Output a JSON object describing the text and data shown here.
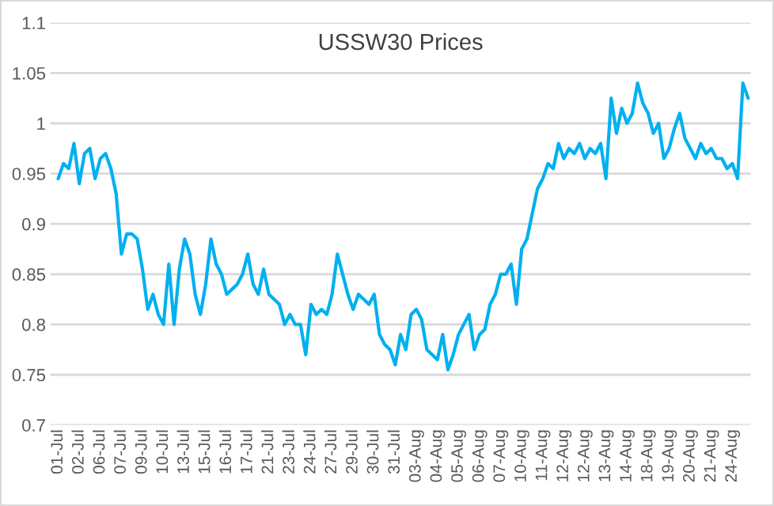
{
  "chart_data": {
    "type": "line",
    "title": "USSW30 Prices",
    "categories": [
      "01-Jul",
      null,
      null,
      null,
      "02-Jul",
      null,
      null,
      null,
      "06-Jul",
      null,
      null,
      null,
      "07-Jul",
      null,
      null,
      null,
      "09-Jul",
      null,
      null,
      null,
      "10-Jul",
      null,
      null,
      null,
      "13-Jul",
      null,
      null,
      null,
      "15-Jul",
      null,
      null,
      null,
      "16-Jul",
      null,
      null,
      null,
      "17-Jul",
      null,
      null,
      null,
      "21-Jul",
      null,
      null,
      null,
      "23-Jul",
      null,
      null,
      null,
      "24-Jul",
      null,
      null,
      null,
      "27-Jul",
      null,
      null,
      null,
      "29-Jul",
      null,
      null,
      null,
      "30-Jul",
      null,
      null,
      null,
      "31-Jul",
      null,
      null,
      null,
      "03-Aug",
      null,
      null,
      null,
      "04-Aug",
      null,
      null,
      null,
      "05-Aug",
      null,
      null,
      null,
      "06-Aug",
      null,
      null,
      null,
      "07-Aug",
      null,
      null,
      null,
      "10-Aug",
      null,
      null,
      null,
      "11-Aug",
      null,
      null,
      null,
      "12-Aug",
      null,
      null,
      null,
      "12-Aug",
      null,
      null,
      null,
      "13-Aug",
      null,
      null,
      null,
      "14-Aug",
      null,
      null,
      null,
      "18-Aug",
      null,
      null,
      null,
      "19-Aug",
      null,
      null,
      null,
      "20-Aug",
      null,
      null,
      null,
      "21-Aug",
      null,
      null,
      null,
      "24-Aug",
      null,
      null,
      null
    ],
    "series": [
      {
        "color": "#00b0f0",
        "values": [
          0.945,
          0.96,
          0.955,
          0.98,
          0.94,
          0.97,
          0.975,
          0.945,
          0.965,
          0.97,
          0.955,
          0.93,
          0.87,
          0.89,
          0.89,
          0.885,
          0.855,
          0.815,
          0.83,
          0.81,
          0.8,
          0.86,
          0.8,
          0.855,
          0.885,
          0.87,
          0.83,
          0.81,
          0.84,
          0.885,
          0.86,
          0.85,
          0.83,
          0.835,
          0.84,
          0.85,
          0.87,
          0.84,
          0.83,
          0.855,
          0.83,
          0.825,
          0.82,
          0.8,
          0.81,
          0.8,
          0.8,
          0.77,
          0.82,
          0.81,
          0.815,
          0.81,
          0.83,
          0.87,
          0.85,
          0.83,
          0.815,
          0.83,
          0.825,
          0.82,
          0.83,
          0.79,
          0.78,
          0.775,
          0.76,
          0.79,
          0.775,
          0.81,
          0.815,
          0.805,
          0.775,
          0.77,
          0.765,
          0.79,
          0.755,
          0.77,
          0.79,
          0.8,
          0.81,
          0.775,
          0.79,
          0.795,
          0.82,
          0.83,
          0.85,
          0.85,
          0.86,
          0.82,
          0.875,
          0.885,
          0.91,
          0.935,
          0.945,
          0.96,
          0.955,
          0.98,
          0.965,
          0.975,
          0.97,
          0.98,
          0.965,
          0.975,
          0.97,
          0.98,
          0.945,
          1.025,
          0.99,
          1.015,
          1.0,
          1.01,
          1.04,
          1.02,
          1.01,
          0.99,
          1.0,
          0.965,
          0.975,
          0.995,
          1.01,
          0.985,
          0.975,
          0.965,
          0.98,
          0.97,
          0.975,
          0.965,
          0.965,
          0.955,
          0.96,
          0.945,
          1.04,
          1.025
        ]
      }
    ],
    "ylim": [
      0.7,
      1.1
    ],
    "yticks": [
      0.7,
      0.75,
      0.8,
      0.85,
      0.9,
      0.95,
      1,
      1.05,
      1.1
    ],
    "grid": "y",
    "marker": "none",
    "line_style": "solid"
  }
}
